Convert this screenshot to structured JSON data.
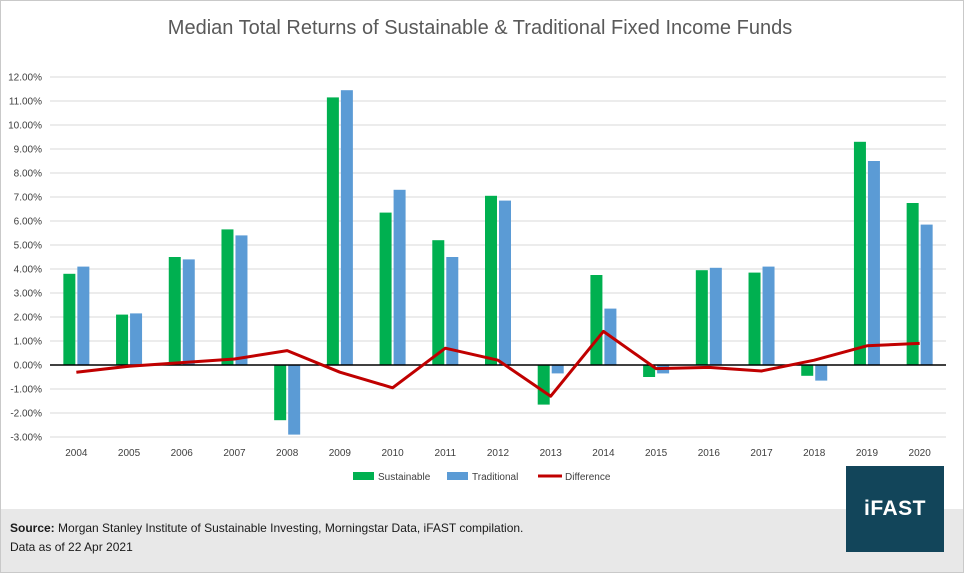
{
  "chart_data": {
    "type": "bar",
    "title": "Median Total Returns of Sustainable & Traditional Fixed Income Funds",
    "categories": [
      "2004",
      "2005",
      "2006",
      "2007",
      "2008",
      "2009",
      "2010",
      "2011",
      "2012",
      "2013",
      "2014",
      "2015",
      "2016",
      "2017",
      "2018",
      "2019",
      "2020"
    ],
    "series": [
      {
        "name": "Sustainable",
        "type": "bar",
        "color": "#00b050",
        "values": [
          3.8,
          2.1,
          4.5,
          5.65,
          -2.3,
          11.15,
          6.35,
          5.2,
          7.05,
          -1.65,
          3.75,
          -0.5,
          3.95,
          3.85,
          -0.45,
          9.3,
          6.75
        ]
      },
      {
        "name": "Traditional",
        "type": "bar",
        "color": "#5b9bd5",
        "values": [
          4.1,
          2.15,
          4.4,
          5.4,
          -2.9,
          11.45,
          7.3,
          4.5,
          6.85,
          -0.35,
          2.35,
          -0.35,
          4.05,
          4.1,
          -0.65,
          8.5,
          5.85
        ]
      },
      {
        "name": "Difference",
        "type": "line",
        "color": "#c00000",
        "values": [
          -0.3,
          -0.05,
          0.1,
          0.25,
          0.6,
          -0.3,
          -0.95,
          0.7,
          0.2,
          -1.3,
          1.4,
          -0.15,
          -0.1,
          -0.25,
          0.2,
          0.8,
          0.9
        ]
      }
    ],
    "ylim": [
      -3,
      12
    ],
    "yticks": [
      -3,
      -2,
      -1,
      0,
      1,
      2,
      3,
      4,
      5,
      6,
      7,
      8,
      9,
      10,
      11,
      12
    ],
    "ytick_labels": [
      "-3.00%",
      "-2.00%",
      "-1.00%",
      "0.00%",
      "1.00%",
      "2.00%",
      "3.00%",
      "4.00%",
      "5.00%",
      "6.00%",
      "7.00%",
      "8.00%",
      "9.00%",
      "10.00%",
      "11.00%",
      "12.00%"
    ],
    "grid": true,
    "legend_position": "bottom"
  },
  "footer": {
    "source_label": "Source:",
    "source_text": " Morgan Stanley Institute of Sustainable Investing, Morningstar Data, iFAST compilation.",
    "as_of": "Data as of 22 Apr 2021"
  },
  "logo": {
    "text": "iFAST",
    "bg_color": "#12455a"
  }
}
